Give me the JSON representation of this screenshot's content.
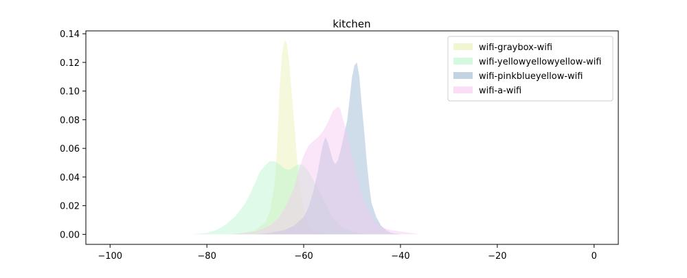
{
  "chart_data": {
    "type": "area",
    "title": "kitchen",
    "xlabel": "",
    "ylabel": "",
    "xlim": [
      -105,
      5
    ],
    "ylim": [
      -0.007,
      0.142
    ],
    "xticks": [
      -100,
      -80,
      -60,
      -40,
      -20,
      0
    ],
    "yticks": [
      0.0,
      0.02,
      0.04,
      0.06,
      0.08,
      0.1,
      0.12,
      0.14
    ],
    "xtick_labels": [
      "−100",
      "−80",
      "−60",
      "−40",
      "−20",
      "0"
    ],
    "ytick_labels": [
      "0.00",
      "0.02",
      "0.04",
      "0.06",
      "0.08",
      "0.10",
      "0.12",
      "0.14"
    ],
    "grid": false,
    "legend_position": "top-right",
    "series": [
      {
        "name": "wifi-graybox-wifi",
        "color": "#e8f0b0",
        "opacity": 0.45,
        "points": [
          [
            -76,
            0
          ],
          [
            -72,
            0.001
          ],
          [
            -70,
            0.003
          ],
          [
            -68,
            0.008
          ],
          [
            -67,
            0.016
          ],
          [
            -66,
            0.035
          ],
          [
            -65.5,
            0.06
          ],
          [
            -65,
            0.1
          ],
          [
            -64.5,
            0.125
          ],
          [
            -64,
            0.135
          ],
          [
            -63.5,
            0.134
          ],
          [
            -63,
            0.12
          ],
          [
            -62.5,
            0.1
          ],
          [
            -62,
            0.08
          ],
          [
            -61.5,
            0.058
          ],
          [
            -61,
            0.04
          ],
          [
            -60.5,
            0.028
          ],
          [
            -60,
            0.019
          ],
          [
            -59.5,
            0.012
          ],
          [
            -59,
            0.007
          ],
          [
            -58,
            0.003
          ],
          [
            -56,
            0.001
          ],
          [
            -54,
            0
          ]
        ]
      },
      {
        "name": "wifi-yellowyellowyellow-wifi",
        "color": "#b8f5cc",
        "opacity": 0.45,
        "points": [
          [
            -83,
            0
          ],
          [
            -80,
            0.001
          ],
          [
            -78,
            0.003
          ],
          [
            -76,
            0.007
          ],
          [
            -74,
            0.013
          ],
          [
            -72,
            0.022
          ],
          [
            -70,
            0.036
          ],
          [
            -69,
            0.044
          ],
          [
            -68,
            0.048
          ],
          [
            -67,
            0.051
          ],
          [
            -66,
            0.051
          ],
          [
            -65,
            0.049
          ],
          [
            -64,
            0.046
          ],
          [
            -63,
            0.045
          ],
          [
            -62,
            0.047
          ],
          [
            -61,
            0.049
          ],
          [
            -60,
            0.048
          ],
          [
            -59,
            0.044
          ],
          [
            -58,
            0.038
          ],
          [
            -57,
            0.032
          ],
          [
            -56,
            0.025
          ],
          [
            -55,
            0.018
          ],
          [
            -54,
            0.012
          ],
          [
            -53,
            0.008
          ],
          [
            -52,
            0.005
          ],
          [
            -50,
            0.002
          ],
          [
            -47,
            0
          ]
        ]
      },
      {
        "name": "wifi-pinkblueyellow-wifi",
        "color": "#a8c0d8",
        "opacity": 0.55,
        "points": [
          [
            -70,
            0
          ],
          [
            -67,
            0.001
          ],
          [
            -64,
            0.003
          ],
          [
            -62,
            0.006
          ],
          [
            -60,
            0.012
          ],
          [
            -59,
            0.019
          ],
          [
            -58,
            0.03
          ],
          [
            -57,
            0.045
          ],
          [
            -56.5,
            0.055
          ],
          [
            -56,
            0.063
          ],
          [
            -55.5,
            0.068
          ],
          [
            -55,
            0.064
          ],
          [
            -54,
            0.052
          ],
          [
            -53.5,
            0.049
          ],
          [
            -53,
            0.051
          ],
          [
            -52.5,
            0.057
          ],
          [
            -52,
            0.064
          ],
          [
            -51,
            0.08
          ],
          [
            -50.5,
            0.095
          ],
          [
            -50,
            0.11
          ],
          [
            -49.5,
            0.118
          ],
          [
            -49,
            0.12
          ],
          [
            -48.5,
            0.11
          ],
          [
            -48,
            0.09
          ],
          [
            -47.5,
            0.072
          ],
          [
            -47,
            0.052
          ],
          [
            -46.5,
            0.035
          ],
          [
            -46,
            0.022
          ],
          [
            -45,
            0.012
          ],
          [
            -44,
            0.006
          ],
          [
            -43,
            0.003
          ],
          [
            -42,
            0.001
          ],
          [
            -40,
            0
          ]
        ]
      },
      {
        "name": "wifi-a-wifi",
        "color": "#f5c8f0",
        "opacity": 0.45,
        "points": [
          [
            -75,
            0
          ],
          [
            -70,
            0.002
          ],
          [
            -67,
            0.006
          ],
          [
            -65,
            0.012
          ],
          [
            -64,
            0.018
          ],
          [
            -62,
            0.032
          ],
          [
            -61,
            0.045
          ],
          [
            -60,
            0.055
          ],
          [
            -59,
            0.062
          ],
          [
            -58,
            0.065
          ],
          [
            -57,
            0.068
          ],
          [
            -56,
            0.072
          ],
          [
            -55,
            0.078
          ],
          [
            -54,
            0.086
          ],
          [
            -53,
            0.089
          ],
          [
            -52.5,
            0.088
          ],
          [
            -52,
            0.082
          ],
          [
            -51,
            0.07
          ],
          [
            -50,
            0.055
          ],
          [
            -49,
            0.04
          ],
          [
            -48,
            0.028
          ],
          [
            -47,
            0.019
          ],
          [
            -46,
            0.013
          ],
          [
            -45,
            0.008
          ],
          [
            -44,
            0.005
          ],
          [
            -42,
            0.003
          ],
          [
            -40,
            0.002
          ],
          [
            -38,
            0.001
          ],
          [
            -36,
            0
          ]
        ]
      }
    ]
  }
}
